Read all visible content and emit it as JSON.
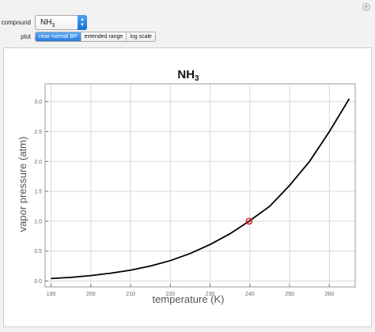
{
  "controls": {
    "compound_label": "compound",
    "compound_value": "NH",
    "compound_sub": "3",
    "plot_label": "plot",
    "plot_options": [
      "near normal BP",
      "extended range",
      "log scale"
    ],
    "plot_selected": 0
  },
  "colors": {
    "accent": "#2a7ae0",
    "curve": "#000000",
    "marker": "#e02020",
    "grid": "#d9d9d9"
  },
  "icons": {
    "corner": "plus-icon",
    "select_arrow": "chevron-updown-icon"
  },
  "chart_data": {
    "type": "line",
    "title_main": "NH",
    "title_sub": "3",
    "xlabel": "temperature (K)",
    "ylabel": "vapor pressure (atm)",
    "xlim": [
      188.5,
      266.5
    ],
    "ylim": [
      -0.1,
      3.3
    ],
    "x_ticks": [
      190,
      200,
      210,
      220,
      230,
      240,
      250,
      260
    ],
    "y_ticks": [
      "0.0",
      "0.5",
      "1.0",
      "1.5",
      "2.0",
      "2.5",
      "3.0"
    ],
    "grid": true,
    "series": [
      {
        "x": [
          190,
          195,
          200,
          205,
          210,
          215,
          220,
          225,
          230,
          235,
          239.8,
          245,
          250,
          255,
          260,
          265
        ],
        "y": [
          0.04,
          0.06,
          0.09,
          0.13,
          0.18,
          0.25,
          0.34,
          0.46,
          0.61,
          0.79,
          1.0,
          1.25,
          1.6,
          2.0,
          2.5,
          3.05
        ]
      }
    ],
    "marker": {
      "x": 239.8,
      "y": 1.0
    }
  }
}
